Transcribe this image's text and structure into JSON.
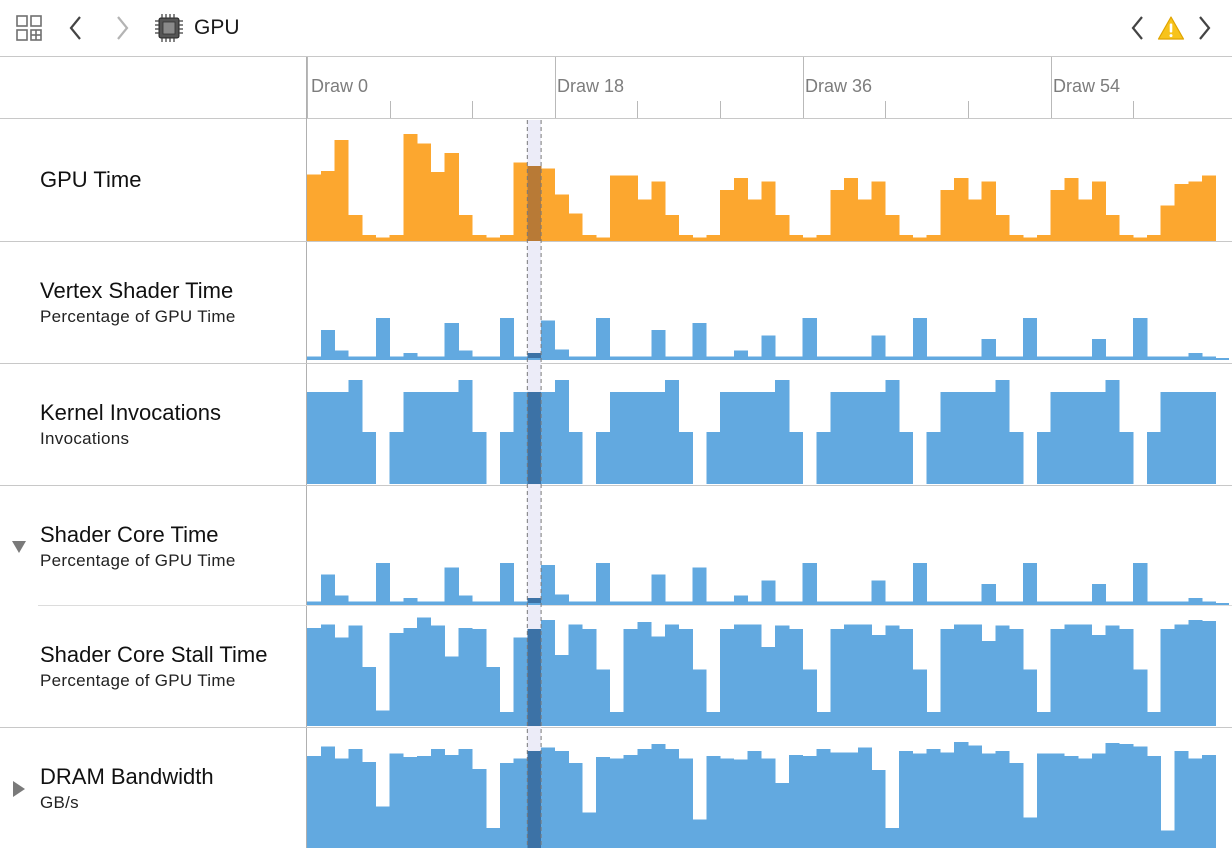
{
  "toolbar": {
    "title": "GPU",
    "icons": [
      "grid-view-icon",
      "back-chevron-icon",
      "forward-chevron-icon",
      "gpu-chip-icon",
      "previous-issue-chevron-icon",
      "warning-icon",
      "next-issue-chevron-icon"
    ]
  },
  "ruler": {
    "labels": [
      "Draw 0",
      "Draw 18",
      "Draw 36",
      "Draw 54"
    ],
    "label_draw_index": [
      0,
      18,
      36,
      54
    ],
    "minor_every": 6
  },
  "selection": {
    "draw_index": 16
  },
  "tracks": [
    {
      "id": "gpu-time",
      "title": "GPU Time",
      "subtitle": "",
      "color": "#fca72f",
      "selected_color": "#b87a36"
    },
    {
      "id": "vertex-shader-time",
      "title": "Vertex Shader Time",
      "subtitle": "Percentage of GPU Time",
      "color": "#62a9e0",
      "selected_color": "#3c72a6"
    },
    {
      "id": "kernel-invocations",
      "title": "Kernel Invocations",
      "subtitle": "Invocations",
      "color": "#62a9e0",
      "selected_color": "#3c72a6"
    },
    {
      "id": "shader-core-time",
      "title": "Shader Core Time",
      "subtitle": "Percentage of GPU Time",
      "color": "#62a9e0",
      "selected_color": "#3c72a6",
      "expanded": true
    },
    {
      "id": "shader-core-stall-time",
      "title": "Shader Core Stall Time",
      "subtitle": "Percentage of GPU Time",
      "color": "#62a9e0",
      "selected_color": "#3c72a6"
    },
    {
      "id": "dram-bandwidth",
      "title": "DRAM Bandwidth",
      "subtitle": "GB/s",
      "color": "#62a9e0",
      "selected_color": "#3c72a6",
      "expanded": false
    }
  ],
  "chart_data": {
    "type": "bar",
    "x": [
      0,
      1,
      2,
      3,
      4,
      5,
      6,
      7,
      8,
      9,
      10,
      11,
      12,
      13,
      14,
      15,
      16,
      17,
      18,
      19,
      20,
      21,
      22,
      23,
      24,
      25,
      26,
      27,
      28,
      29,
      30,
      31,
      32,
      33,
      34,
      35,
      36,
      37,
      38,
      39,
      40,
      41,
      42,
      43,
      44,
      45,
      46,
      47,
      48,
      49,
      50,
      51,
      52,
      53,
      54,
      55,
      56,
      57,
      58,
      59,
      60,
      61,
      62,
      63,
      64,
      65,
      66
    ],
    "xlabel": "",
    "ylabel": "",
    "series": [
      {
        "name": "GPU Time",
        "values": [
          0.56,
          0.59,
          0.85,
          0.22,
          0.05,
          0.03,
          0.05,
          0.9,
          0.82,
          0.58,
          0.74,
          0.22,
          0.05,
          0.03,
          0.05,
          0.66,
          0.63,
          0.61,
          0.39,
          0.23,
          0.05,
          0.03,
          0.55,
          0.55,
          0.35,
          0.5,
          0.22,
          0.05,
          0.03,
          0.05,
          0.43,
          0.53,
          0.35,
          0.5,
          0.22,
          0.05,
          0.03,
          0.05,
          0.43,
          0.53,
          0.35,
          0.5,
          0.22,
          0.05,
          0.03,
          0.05,
          0.43,
          0.53,
          0.35,
          0.5,
          0.22,
          0.05,
          0.03,
          0.05,
          0.43,
          0.53,
          0.35,
          0.5,
          0.22,
          0.05,
          0.03,
          0.05,
          0.3,
          0.48,
          0.5,
          0.55,
          0.0
        ]
      },
      {
        "name": "Vertex Shader Time",
        "values": [
          0.03,
          0.26,
          0.08,
          0.03,
          0.03,
          0.36,
          0.03,
          0.06,
          0.03,
          0.03,
          0.32,
          0.08,
          0.03,
          0.03,
          0.36,
          0.03,
          0.06,
          0.34,
          0.09,
          0.03,
          0.03,
          0.36,
          0.03,
          0.03,
          0.03,
          0.26,
          0.03,
          0.03,
          0.32,
          0.03,
          0.03,
          0.08,
          0.03,
          0.21,
          0.03,
          0.03,
          0.36,
          0.03,
          0.03,
          0.03,
          0.03,
          0.21,
          0.03,
          0.03,
          0.36,
          0.03,
          0.03,
          0.03,
          0.03,
          0.18,
          0.03,
          0.03,
          0.36,
          0.03,
          0.03,
          0.03,
          0.03,
          0.18,
          0.03,
          0.03,
          0.36,
          0.03,
          0.03,
          0.03,
          0.06,
          0.03,
          0.0
        ]
      },
      {
        "name": "Kernel Invocations",
        "values": [
          0.78,
          0.78,
          0.78,
          0.88,
          0.44,
          0.0,
          0.44,
          0.78,
          0.78,
          0.78,
          0.78,
          0.88,
          0.44,
          0.0,
          0.44,
          0.78,
          0.78,
          0.78,
          0.88,
          0.44,
          0.0,
          0.44,
          0.78,
          0.78,
          0.78,
          0.78,
          0.88,
          0.44,
          0.0,
          0.44,
          0.78,
          0.78,
          0.78,
          0.78,
          0.88,
          0.44,
          0.0,
          0.44,
          0.78,
          0.78,
          0.78,
          0.78,
          0.88,
          0.44,
          0.0,
          0.44,
          0.78,
          0.78,
          0.78,
          0.78,
          0.88,
          0.44,
          0.0,
          0.44,
          0.78,
          0.78,
          0.78,
          0.78,
          0.88,
          0.44,
          0.0,
          0.44,
          0.78,
          0.78,
          0.78,
          0.78,
          0.0
        ]
      },
      {
        "name": "Shader Core Time",
        "values": [
          0.03,
          0.26,
          0.08,
          0.03,
          0.03,
          0.36,
          0.03,
          0.06,
          0.03,
          0.03,
          0.32,
          0.08,
          0.03,
          0.03,
          0.36,
          0.03,
          0.06,
          0.34,
          0.09,
          0.03,
          0.03,
          0.36,
          0.03,
          0.03,
          0.03,
          0.26,
          0.03,
          0.03,
          0.32,
          0.03,
          0.03,
          0.08,
          0.03,
          0.21,
          0.03,
          0.03,
          0.36,
          0.03,
          0.03,
          0.03,
          0.03,
          0.21,
          0.03,
          0.03,
          0.36,
          0.03,
          0.03,
          0.03,
          0.03,
          0.18,
          0.03,
          0.03,
          0.36,
          0.03,
          0.03,
          0.03,
          0.03,
          0.18,
          0.03,
          0.03,
          0.36,
          0.03,
          0.03,
          0.03,
          0.06,
          0.03,
          0.0
        ]
      },
      {
        "name": "Shader Core Stall Time",
        "values": [
          0.83,
          0.86,
          0.75,
          0.85,
          0.5,
          0.13,
          0.79,
          0.83,
          0.92,
          0.85,
          0.59,
          0.83,
          0.82,
          0.5,
          0.12,
          0.75,
          0.82,
          0.9,
          0.6,
          0.86,
          0.82,
          0.48,
          0.12,
          0.82,
          0.88,
          0.76,
          0.86,
          0.82,
          0.48,
          0.12,
          0.82,
          0.86,
          0.86,
          0.67,
          0.85,
          0.82,
          0.48,
          0.12,
          0.82,
          0.86,
          0.86,
          0.77,
          0.85,
          0.82,
          0.48,
          0.12,
          0.82,
          0.86,
          0.86,
          0.72,
          0.85,
          0.82,
          0.48,
          0.12,
          0.82,
          0.86,
          0.86,
          0.77,
          0.85,
          0.82,
          0.48,
          0.12,
          0.82,
          0.86,
          0.9,
          0.89,
          0.0
        ]
      },
      {
        "name": "DRAM Bandwidth",
        "values": [
          0.78,
          0.86,
          0.76,
          0.84,
          0.73,
          0.35,
          0.8,
          0.77,
          0.78,
          0.84,
          0.79,
          0.84,
          0.67,
          0.17,
          0.72,
          0.76,
          0.82,
          0.85,
          0.82,
          0.72,
          0.3,
          0.77,
          0.76,
          0.79,
          0.84,
          0.88,
          0.84,
          0.76,
          0.24,
          0.78,
          0.76,
          0.75,
          0.82,
          0.76,
          0.55,
          0.79,
          0.78,
          0.84,
          0.81,
          0.81,
          0.85,
          0.66,
          0.17,
          0.82,
          0.8,
          0.84,
          0.81,
          0.9,
          0.87,
          0.8,
          0.82,
          0.72,
          0.26,
          0.8,
          0.8,
          0.78,
          0.76,
          0.8,
          0.89,
          0.88,
          0.86,
          0.78,
          0.15,
          0.82,
          0.76,
          0.79,
          0.0
        ]
      }
    ]
  }
}
